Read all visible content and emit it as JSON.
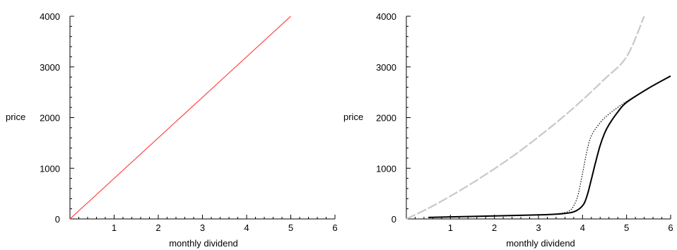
{
  "chart_data": [
    {
      "type": "line",
      "xlabel": "monthly dividend",
      "ylabel": "price",
      "xlim": [
        0,
        6
      ],
      "ylim": [
        0,
        4000
      ],
      "x_ticks": [
        "1",
        "2",
        "3",
        "4",
        "5",
        "6"
      ],
      "y_ticks": [
        "0",
        "1000",
        "2000",
        "3000",
        "4000"
      ],
      "grid": false,
      "series": [
        {
          "style": "solid",
          "color": "#ff4a4a",
          "x": [
            0,
            5
          ],
          "y": [
            0,
            4000
          ]
        }
      ]
    },
    {
      "type": "line",
      "xlabel": "monthly dividend",
      "ylabel": "price",
      "xlim": [
        0,
        6
      ],
      "ylim": [
        0,
        4000
      ],
      "x_ticks": [
        "1",
        "2",
        "3",
        "4",
        "5",
        "6"
      ],
      "y_ticks": [
        "0",
        "1000",
        "2000",
        "3000",
        "4000"
      ],
      "grid": false,
      "series": [
        {
          "style": "dashed",
          "color": "#c8c8c8",
          "x": [
            0,
            0.5,
            1,
            1.5,
            2,
            2.5,
            3,
            3.5,
            4,
            4.5,
            5,
            5.4
          ],
          "y": [
            0,
            210,
            450,
            710,
            990,
            1290,
            1620,
            1970,
            2350,
            2760,
            3200,
            4000
          ]
        },
        {
          "style": "dotted",
          "color": "#000000",
          "x": [
            0.5,
            1,
            2,
            3,
            3.5,
            3.7,
            3.8,
            3.9,
            4.0,
            4.1,
            4.2,
            4.4,
            4.6,
            4.8,
            5.0,
            5.5,
            6.0
          ],
          "y": [
            30,
            40,
            60,
            80,
            110,
            160,
            260,
            480,
            900,
            1340,
            1640,
            1900,
            2070,
            2200,
            2320,
            2580,
            2820
          ]
        },
        {
          "style": "solid",
          "color": "#000000",
          "x": [
            0.5,
            1,
            2,
            3,
            3.5,
            3.8,
            4.0,
            4.1,
            4.2,
            4.3,
            4.4,
            4.5,
            4.6,
            4.8,
            5.0,
            5.5,
            6.0
          ],
          "y": [
            30,
            40,
            60,
            80,
            100,
            140,
            260,
            450,
            780,
            1130,
            1450,
            1690,
            1860,
            2110,
            2300,
            2580,
            2820
          ]
        }
      ]
    }
  ]
}
